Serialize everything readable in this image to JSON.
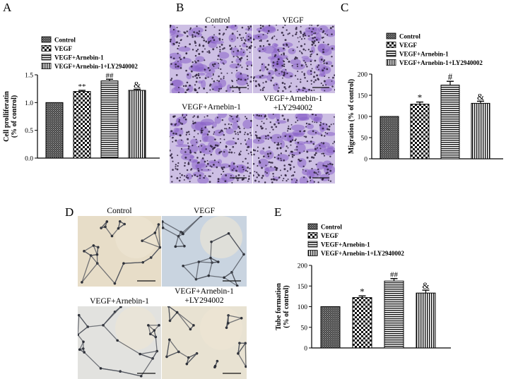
{
  "panels": {
    "A": "A",
    "B": "B",
    "C": "C",
    "D": "D",
    "E": "E"
  },
  "legend": [
    "Control",
    "VEGF",
    "VEGF+Arnebin-1",
    "VEGF+Arnebin-1+LY2940002"
  ],
  "B": {
    "titles": [
      "Control",
      "VEGF",
      "VEGF+Arnebin-1",
      "VEGF+Arnebin-1",
      "+LY294002"
    ]
  },
  "D": {
    "titles": [
      "Control",
      "VEGF",
      "VEGF+Arnebin-1",
      "VEGF+Arnebin-1",
      "+LY294002"
    ]
  },
  "chart_data": [
    {
      "panel": "A",
      "type": "bar",
      "ylabel": "Cell prolliferatin\n(% of control)",
      "ylim": [
        0,
        1.5
      ],
      "yticks": [
        "0.0",
        "0.5",
        "1.0",
        "1.5"
      ],
      "categories": [
        "Control",
        "VEGF",
        "VEGF+Arnebin-1",
        "VEGF+Arnebin-1+LY2940002"
      ],
      "values": [
        1.0,
        1.2,
        1.39,
        1.22
      ],
      "errors": [
        0,
        0.02,
        0.03,
        0.02
      ],
      "annotations": [
        "",
        "**",
        "##",
        "&"
      ]
    },
    {
      "panel": "C",
      "type": "bar",
      "ylabel": "Migration (% of control)",
      "ylim": [
        0,
        200
      ],
      "yticks": [
        "0",
        "50",
        "100",
        "150",
        "200"
      ],
      "categories": [
        "Control",
        "VEGF",
        "VEGF+Arnebin-1",
        "VEGF+Arnebin-1+LY2940002"
      ],
      "values": [
        100,
        129,
        174,
        131
      ],
      "errors": [
        0,
        5,
        9,
        5
      ],
      "annotations": [
        "",
        "*",
        "#",
        "&"
      ]
    },
    {
      "panel": "E",
      "type": "bar",
      "ylabel": "Tube formation\n(% of control)",
      "ylim": [
        0,
        200
      ],
      "yticks": [
        "0",
        "50",
        "100",
        "150",
        "200"
      ],
      "categories": [
        "Control",
        "VEGF",
        "VEGF+Arnebin-1",
        "VEGF+Arnebin-1+LY2940002"
      ],
      "values": [
        100,
        122,
        162,
        133
      ],
      "errors": [
        0,
        4,
        6,
        7
      ],
      "annotations": [
        "",
        "*",
        "##",
        "&"
      ]
    }
  ]
}
